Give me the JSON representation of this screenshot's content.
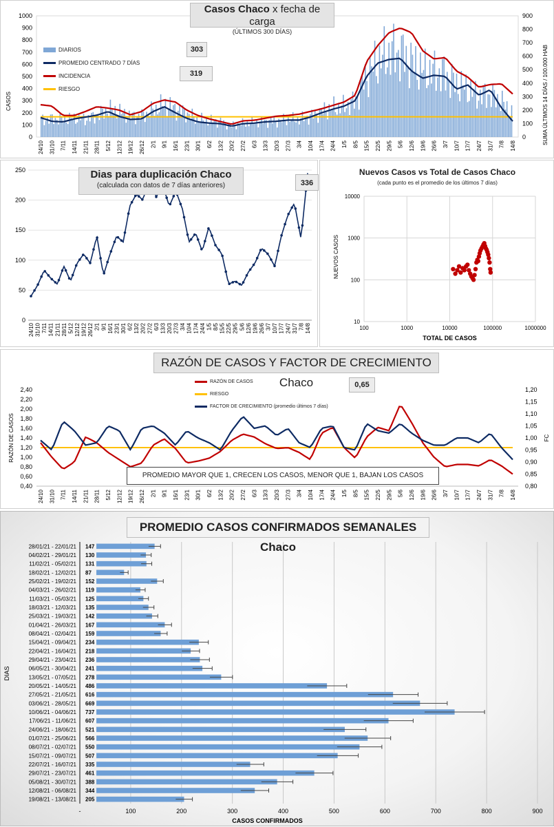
{
  "colors": {
    "diarios": "#7fa7d6",
    "promedio": "#0d2a63",
    "incidencia": "#c00000",
    "riesgo": "#ffc000",
    "scatter": "#c00000",
    "bar": "#6e9fd6"
  },
  "panel1": {
    "title_main": "Casos Chaco",
    "title_rest": " x fecha de carga",
    "subtitle": "(ÚLTIMOS 300 DÍAS)",
    "callout_a": "303",
    "callout_b": "319",
    "legend": [
      "DIARIOS",
      "PROMEDIO CENTRADO 7 DÍAS",
      "INCIDENCIA",
      "RIESGO"
    ],
    "ylabel_left": "CASOS",
    "ylabel_right": "SUMA ÚLTIMOS 14 DÍAS / 100.000 HAB"
  },
  "panel2": {
    "title": "Dias para duplicación Chaco",
    "subtitle": "(calculada con datos de 7 días anteriores)",
    "callout": "336"
  },
  "panel3": {
    "title": "Nuevos Casos vs Total de Casos Chaco",
    "subtitle": "(cada punto es el promedio de los últimos 7 días)",
    "xlabel": "TOTAL DE CASOS",
    "ylabel": "NUEVOS CASOS"
  },
  "panel4": {
    "title": "RAZÓN DE CASOS Y FACTOR DE CRECIMIENTO Chaco",
    "callout": "0,65",
    "legend": [
      "RAZÓN DE CASOS",
      "RIESGO",
      "FACTOR DE CRECIMIENTO (promedio últimos 7 días)"
    ],
    "note": "PROMEDIO MAYOR QUE 1, CRECEN LOS CASOS, MENOR QUE 1, BAJAN LOS CASOS",
    "ylabel_left": "RAZÓN DE CASOS",
    "ylabel_right": "FC"
  },
  "panel5": {
    "title": "PROMEDIO CASOS CONFIRMADOS SEMANALES Chaco",
    "xlabel": "CASOS CONFIRMADOS",
    "ylabel": "DIAS"
  },
  "chart_data": [
    {
      "type": "bar+line",
      "x_ticks": [
        "24/10",
        "31/10",
        "7/11",
        "14/11",
        "21/11",
        "28/11",
        "5/12",
        "12/12",
        "19/12",
        "26/12",
        "2/1",
        "9/1",
        "16/1",
        "23/1",
        "30/1",
        "6/2",
        "13/2",
        "20/2",
        "27/2",
        "6/3",
        "13/3",
        "20/3",
        "27/3",
        "3/4",
        "10/4",
        "17/4",
        "24/4",
        "1/5",
        "8/5",
        "15/5",
        "22/5",
        "29/5",
        "5/6",
        "12/6",
        "19/6",
        "26/6",
        "3/7",
        "10/7",
        "17/7",
        "24/7",
        "31/7",
        "7/8",
        "14/8"
      ],
      "left_ticks": [
        "0",
        "100",
        "200",
        "300",
        "400",
        "500",
        "600",
        "700",
        "800",
        "900",
        "1000"
      ],
      "right_ticks": [
        "0",
        "100",
        "200",
        "300",
        "400",
        "500",
        "600",
        "700",
        "800",
        "900"
      ],
      "ylim_left": [
        0,
        1000
      ],
      "ylim_right": [
        0,
        900
      ],
      "series": [
        {
          "name": "DIARIOS",
          "kind": "bar",
          "values": [
            140,
            150,
            145,
            155,
            150,
            175,
            230,
            205,
            170,
            175,
            220,
            270,
            230,
            195,
            145,
            135,
            125,
            95,
            110,
            120,
            130,
            130,
            145,
            145,
            170,
            210,
            240,
            250,
            290,
            500,
            620,
            690,
            700,
            620,
            550,
            535,
            520,
            440,
            400,
            340,
            350,
            300,
            200
          ]
        },
        {
          "name": "PROMEDIO CENTRADO 7 DÍAS",
          "kind": "line",
          "values": [
            160,
            130,
            125,
            150,
            165,
            180,
            210,
            170,
            145,
            150,
            210,
            250,
            200,
            155,
            125,
            115,
            110,
            90,
            110,
            115,
            125,
            130,
            140,
            140,
            165,
            200,
            230,
            255,
            300,
            500,
            610,
            640,
            650,
            545,
            485,
            510,
            500,
            395,
            430,
            345,
            390,
            240,
            130
          ]
        },
        {
          "name": "INCIDENCIA",
          "kind": "line",
          "values": [
            240,
            230,
            160,
            160,
            190,
            225,
            215,
            200,
            165,
            190,
            250,
            275,
            260,
            200,
            160,
            135,
            115,
            95,
            120,
            125,
            140,
            155,
            160,
            170,
            190,
            210,
            235,
            260,
            310,
            560,
            680,
            775,
            810,
            775,
            640,
            580,
            590,
            490,
            445,
            370,
            390,
            395,
            320
          ]
        },
        {
          "name": "RIESGO",
          "kind": "line",
          "values": [
            150,
            150
          ]
        }
      ]
    },
    {
      "type": "line",
      "x_ticks": [
        "24/10",
        "31/10",
        "7/11",
        "14/11",
        "21/11",
        "28/11",
        "5/12",
        "12/12",
        "19/12",
        "26/12",
        "2/1",
        "9/1",
        "16/1",
        "23/1",
        "30/1",
        "6/2",
        "13/2",
        "20/2",
        "27/2",
        "6/3",
        "13/3",
        "20/3",
        "27/3",
        "3/4",
        "10/4",
        "17/4",
        "24/4",
        "1/5",
        "8/5",
        "15/5",
        "22/5",
        "29/5",
        "5/6",
        "12/6",
        "19/6",
        "26/6",
        "3/7",
        "10/7",
        "17/7",
        "24/7",
        "31/7",
        "7/8",
        "14/8"
      ],
      "y_ticks": [
        "0",
        "50",
        "100",
        "150",
        "200",
        "250"
      ],
      "ylim": [
        0,
        250
      ],
      "series": [
        {
          "values": [
            40,
            58,
            83,
            70,
            60,
            90,
            65,
            95,
            110,
            95,
            140,
            75,
            110,
            140,
            130,
            190,
            210,
            200,
            240,
            205,
            225,
            190,
            215,
            185,
            130,
            145,
            115,
            155,
            125,
            110,
            60,
            65,
            58,
            80,
            95,
            120,
            110,
            90,
            140,
            175,
            195,
            135,
            245
          ]
        }
      ]
    },
    {
      "type": "scatter",
      "xscale": "log",
      "yscale": "log",
      "x_ticks": [
        "100",
        "1000",
        "10000",
        "100000",
        "1000000"
      ],
      "y_ticks": [
        "10",
        "100",
        "1000",
        "10000"
      ],
      "xlim": [
        100,
        1000000
      ],
      "ylim": [
        10,
        10000
      ],
      "points": [
        [
          12000,
          180
        ],
        [
          13500,
          140
        ],
        [
          15000,
          170
        ],
        [
          16500,
          210
        ],
        [
          18000,
          150
        ],
        [
          20000,
          190
        ],
        [
          22000,
          170
        ],
        [
          24000,
          210
        ],
        [
          26000,
          230
        ],
        [
          28000,
          170
        ],
        [
          30000,
          140
        ],
        [
          32000,
          120
        ],
        [
          34000,
          110
        ],
        [
          36000,
          100
        ],
        [
          38000,
          130
        ],
        [
          40000,
          180
        ],
        [
          42000,
          260
        ],
        [
          44000,
          300
        ],
        [
          46000,
          280
        ],
        [
          48000,
          360
        ],
        [
          50000,
          430
        ],
        [
          52000,
          500
        ],
        [
          55000,
          560
        ],
        [
          58000,
          620
        ],
        [
          61000,
          690
        ],
        [
          64000,
          750
        ],
        [
          67000,
          640
        ],
        [
          70000,
          560
        ],
        [
          73000,
          520
        ],
        [
          76000,
          460
        ],
        [
          79000,
          400
        ],
        [
          82000,
          330
        ],
        [
          85000,
          260
        ],
        [
          88000,
          180
        ],
        [
          90000,
          150
        ]
      ]
    },
    {
      "type": "line",
      "x_ticks": [
        "24/10",
        "31/10",
        "7/11",
        "14/11",
        "21/11",
        "28/11",
        "5/12",
        "12/12",
        "19/12",
        "26/12",
        "2/1",
        "9/1",
        "16/1",
        "23/1",
        "30/1",
        "6/2",
        "13/2",
        "20/2",
        "27/2",
        "6/3",
        "13/3",
        "20/3",
        "27/3",
        "3/4",
        "10/4",
        "17/4",
        "24/4",
        "1/5",
        "8/5",
        "15/5",
        "22/5",
        "29/5",
        "5/6",
        "12/6",
        "19/6",
        "26/6",
        "3/7",
        "10/7",
        "17/7",
        "24/7",
        "31/7",
        "7/8",
        "14/8"
      ],
      "left_ticks": [
        "0,40",
        "0,60",
        "0,80",
        "1,00",
        "1,20",
        "1,40",
        "1,60",
        "1,80",
        "2,00",
        "2,20",
        "2,40"
      ],
      "right_ticks": [
        "0,80",
        "0,85",
        "0,90",
        "0,95",
        "1,00",
        "1,05",
        "1,10",
        "1,15",
        "1,20"
      ],
      "ylim_left": [
        0.4,
        2.4
      ],
      "ylim_right": [
        0.8,
        1.2
      ],
      "series": [
        {
          "name": "RAZÓN DE CASOS",
          "axis": "left",
          "values": [
            1.3,
            1.0,
            0.75,
            0.9,
            1.42,
            1.3,
            1.1,
            0.95,
            0.8,
            0.88,
            1.25,
            1.38,
            1.18,
            0.88,
            0.92,
            0.98,
            1.12,
            1.35,
            1.48,
            1.42,
            1.28,
            1.18,
            1.2,
            1.1,
            0.95,
            1.5,
            1.62,
            1.2,
            0.98,
            1.42,
            1.62,
            1.55,
            2.1,
            1.72,
            1.3,
            1.0,
            0.8,
            0.85,
            0.85,
            0.82,
            0.95,
            0.82,
            0.65
          ]
        },
        {
          "name": "RIESGO",
          "axis": "left",
          "values": [
            1.2,
            1.2
          ]
        },
        {
          "name": "FACTOR DE CRECIMIENTO (promedio últimos 7 días)",
          "axis": "right",
          "values": [
            0.99,
            0.95,
            1.07,
            1.03,
            0.97,
            0.98,
            1.05,
            1.03,
            0.95,
            1.04,
            1.05,
            1.02,
            0.97,
            1.03,
            1.0,
            0.98,
            0.95,
            1.03,
            1.09,
            1.04,
            1.05,
            1.01,
            1.04,
            0.98,
            0.96,
            1.04,
            1.05,
            0.96,
            0.95,
            1.06,
            1.03,
            1.02,
            1.06,
            1.02,
            0.99,
            0.97,
            0.97,
            1.0,
            1.0,
            0.98,
            1.02,
            0.96,
            0.91
          ]
        }
      ]
    },
    {
      "type": "bar",
      "orientation": "horizontal",
      "xlabel": "CASOS CONFIRMADOS",
      "ylabel": "DIAS",
      "xlim": [
        0,
        900
      ],
      "x_ticks": [
        "-",
        "100",
        "200",
        "300",
        "400",
        "500",
        "600",
        "700",
        "800",
        "900"
      ],
      "categories": [
        "28/01/21 - 22/01/21",
        "04/02/21 - 29/01/21",
        "11/02/21 - 05/02/21",
        "18/02/21 - 12/02/21",
        "25/02/21 - 19/02/21",
        "04/03/21 - 26/02/21",
        "11/03/21 - 05/03/21",
        "18/03/21 - 12/03/21",
        "25/03/21 - 19/03/21",
        "01/04/21 - 26/03/21",
        "08/04/21 - 02/04/21",
        "15/04/21 - 09/04/21",
        "22/04/21 - 16/04/21",
        "29/04/21 - 23/04/21",
        "06/05/21 - 30/04/21",
        "13/05/21 - 07/05/21",
        "20/05/21 - 14/05/21",
        "27/05/21 - 21/05/21",
        "03/06/21 - 28/05/21",
        "10/06/21 - 04/06/21",
        "17/06/21 - 11/06/21",
        "24/06/21 - 18/06/21",
        "01/07/21 - 25/06/21",
        "08/07/21 - 02/07/21",
        "15/07/21 - 09/07/21",
        "22/07/21 - 16/07/21",
        "29/07/21 - 23/07/21",
        "05/08/21 - 30/07/21",
        "12/08/21 - 06/08/21",
        "19/08/21 - 13/08/21"
      ],
      "values": [
        147,
        130,
        131,
        87,
        152,
        119,
        125,
        135,
        142,
        167,
        159,
        234,
        218,
        236,
        241,
        278,
        486,
        616,
        669,
        737,
        607,
        521,
        566,
        550,
        507,
        335,
        461,
        388,
        344,
        205
      ],
      "labels": [
        "147",
        "130",
        "131",
        "87",
        "152",
        "119",
        "125",
        "135",
        "142",
        "167",
        "159",
        "234",
        "218",
        "236",
        "241",
        "278",
        "486",
        "616",
        "669",
        "737",
        "607",
        "521",
        "566",
        "550",
        "507",
        "335",
        "461",
        "388",
        "344",
        "205"
      ]
    }
  ]
}
